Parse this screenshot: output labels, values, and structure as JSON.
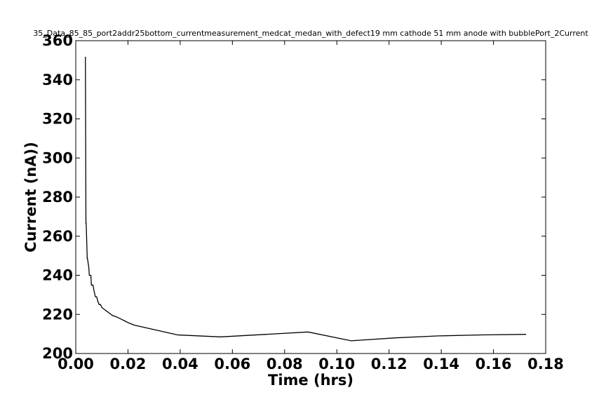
{
  "chart_data": {
    "type": "line",
    "title": "35_Data_85_85_port2addr25bottom_currentmeasurement_medcat_medan_with_defect19 mm cathode 51 mm anode with bubblePort_2Current",
    "xlabel": "Time (hrs)",
    "ylabel": "Current (nA))",
    "xlim": [
      0.0,
      0.18
    ],
    "ylim": [
      200,
      360
    ],
    "x_ticks": [
      "0.00",
      "0.02",
      "0.04",
      "0.06",
      "0.08",
      "0.10",
      "0.12",
      "0.14",
      "0.16",
      "0.18"
    ],
    "y_ticks": [
      "200",
      "220",
      "240",
      "260",
      "280",
      "300",
      "320",
      "340",
      "360"
    ],
    "grid": false,
    "line_color": "#000000",
    "series": [
      {
        "x": [
          0.0035,
          0.0037,
          0.0039,
          0.004,
          0.0044,
          0.0045,
          0.005,
          0.0052,
          0.0058,
          0.006,
          0.0066,
          0.007,
          0.0075,
          0.008,
          0.0085,
          0.009,
          0.0095,
          0.01,
          0.011,
          0.012,
          0.013,
          0.014,
          0.015,
          0.016,
          0.0175,
          0.019,
          0.0205,
          0.0225,
          0.039,
          0.0555,
          0.089,
          0.1055,
          0.1225,
          0.139,
          0.1555,
          0.1725
        ],
        "y": [
          351.5,
          351.5,
          266.5,
          266.5,
          248.5,
          248.5,
          244,
          240,
          240,
          235,
          235,
          232,
          229,
          229,
          226.5,
          225,
          225,
          223.5,
          222.5,
          221.5,
          220.5,
          219.5,
          219,
          218.5,
          217.5,
          216.5,
          215.5,
          214.5,
          209.5,
          208.5,
          211,
          206.5,
          208,
          209,
          209.5,
          209.8
        ]
      }
    ]
  }
}
